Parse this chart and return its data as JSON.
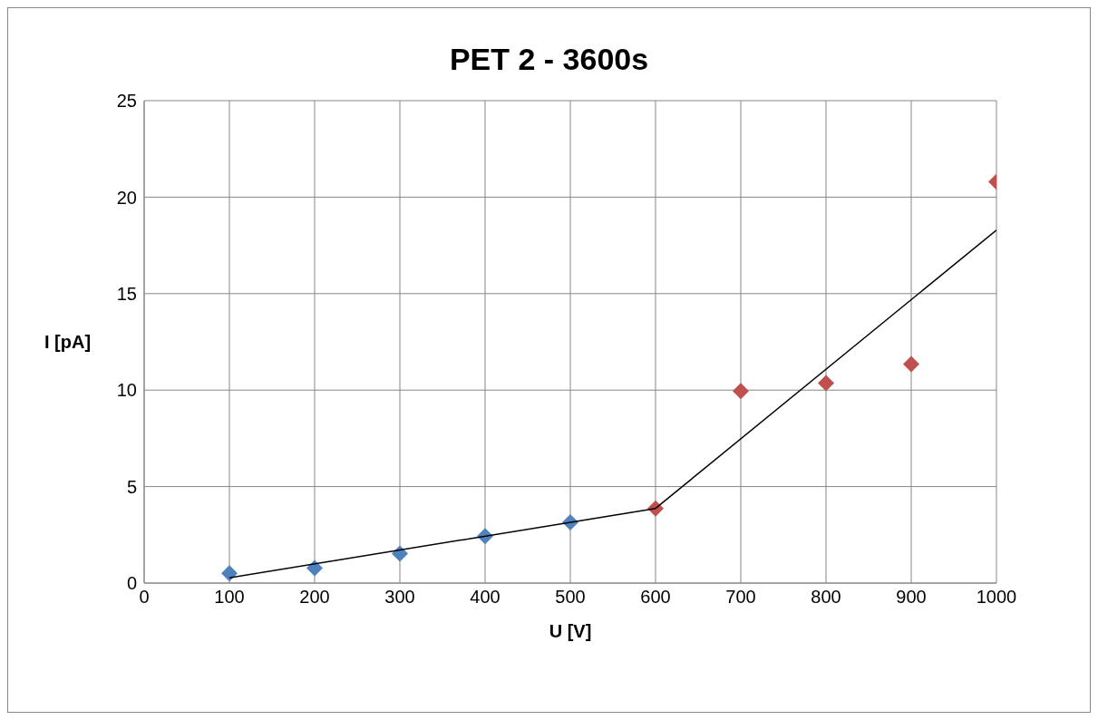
{
  "chart_data": {
    "type": "scatter",
    "title": "PET 2 - 3600s",
    "xlabel": "U [V]",
    "ylabel": "I [pA]",
    "xlim": [
      0,
      1000
    ],
    "xticks": [
      0,
      100,
      200,
      300,
      400,
      500,
      600,
      700,
      800,
      900,
      1000
    ],
    "ylim": [
      0,
      25
    ],
    "yticks": [
      0,
      5,
      10,
      15,
      20,
      25
    ],
    "grid": true,
    "legend": false,
    "marker": "diamond",
    "series": [
      {
        "color": "#4f81bd",
        "x": [
          100,
          200,
          300,
          400,
          500
        ],
        "values": [
          0.5,
          0.77,
          1.53,
          2.43,
          3.15
        ]
      },
      {
        "color": "#c0504d",
        "x": [
          600,
          700,
          800,
          900,
          1000
        ],
        "values": [
          3.87,
          9.95,
          10.36,
          11.35,
          20.8
        ]
      },
      {
        "type": "line",
        "color": "#000000",
        "marker": "none",
        "line_style": "solid",
        "x": [
          100,
          600
        ],
        "values": [
          0.27,
          3.87
        ]
      },
      {
        "type": "line",
        "color": "#000000",
        "marker": "none",
        "line_style": "solid",
        "x": [
          600,
          1000
        ],
        "values": [
          3.87,
          18.29
        ]
      }
    ]
  }
}
